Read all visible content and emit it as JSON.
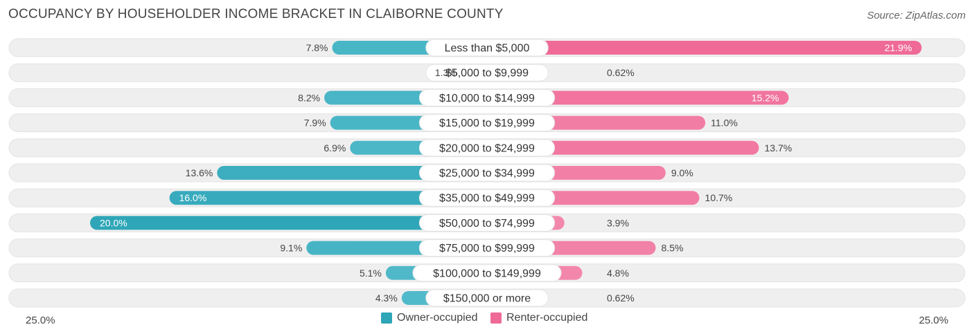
{
  "title": "OCCUPANCY BY HOUSEHOLDER INCOME BRACKET IN CLAIBORNE COUNTY",
  "source": "Source: ZipAtlas.com",
  "colors": {
    "owner": "#5bc0cf",
    "owner_dark": "#2ea6b8",
    "renter": "#f48fb1",
    "renter_dark": "#ef6a97",
    "track": "#efefef"
  },
  "axis": {
    "left_label": "25.0%",
    "right_label": "25.0%"
  },
  "legend": {
    "owner_label": "Owner-occupied",
    "renter_label": "Renter-occupied"
  },
  "chart_data": {
    "type": "bar",
    "orientation": "horizontal-diverging",
    "title": "OCCUPANCY BY HOUSEHOLDER INCOME BRACKET IN CLAIBORNE COUNTY",
    "xlim": [
      -25,
      25
    ],
    "categories": [
      "Less than $5,000",
      "$5,000 to $9,999",
      "$10,000 to $14,999",
      "$15,000 to $19,999",
      "$20,000 to $24,999",
      "$25,000 to $34,999",
      "$35,000 to $49,999",
      "$50,000 to $74,999",
      "$75,000 to $99,999",
      "$100,000 to $149,999",
      "$150,000 or more"
    ],
    "series": [
      {
        "name": "Owner-occupied",
        "values": [
          7.8,
          1.3,
          8.2,
          7.9,
          6.9,
          13.6,
          16.0,
          20.0,
          9.1,
          5.1,
          4.3
        ],
        "labels": [
          "7.8%",
          "1.3%",
          "8.2%",
          "7.9%",
          "6.9%",
          "13.6%",
          "16.0%",
          "20.0%",
          "9.1%",
          "5.1%",
          "4.3%"
        ]
      },
      {
        "name": "Renter-occupied",
        "values": [
          21.9,
          0.62,
          15.2,
          11.0,
          13.7,
          9.0,
          10.7,
          3.9,
          8.5,
          4.8,
          0.62
        ],
        "labels": [
          "21.9%",
          "0.62%",
          "15.2%",
          "11.0%",
          "13.7%",
          "9.0%",
          "10.7%",
          "3.9%",
          "8.5%",
          "4.8%",
          "0.62%"
        ]
      }
    ],
    "legend_position": "bottom-center",
    "grid": false
  }
}
